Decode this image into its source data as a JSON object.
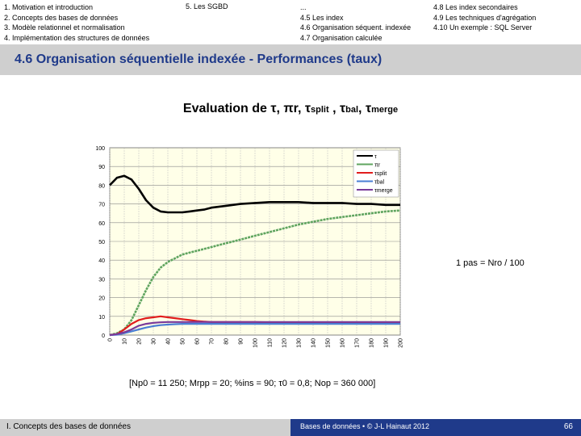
{
  "nav": {
    "left": [
      "1. Motivation et introduction",
      "2. Concepts des bases de données",
      "3. Modèle relationnel et normalisation",
      "4. Implémentation des structures de données"
    ],
    "middle": "5. Les SGBD",
    "center": [
      "...",
      "4.5 Les index",
      "4.6 Organisation séquent. indexée",
      "4.7 Organisation calculée"
    ],
    "right": [
      "4.8 Les index secondaires",
      "4.9 Les techniques d'agrégation",
      "4.10 Un exemple : SQL Server"
    ]
  },
  "band_title": "4.6 Organisation séquentielle indexée - Performances (taux)",
  "title": {
    "prefix": "Evaluation de",
    "s1": "τ",
    "sep1": ", ",
    "s2": "πr",
    "sep2": ", ",
    "s3": "τ",
    "s3sub": "split",
    "sep3": " , ",
    "s4": "τ",
    "s4sub": "bal",
    "sep4": ", ",
    "s5": "τ",
    "s5sub": "merge"
  },
  "annotation": "1 pas = Nro / 100",
  "params": "[Np0 = 11 250; Mrpp = 20; %ins = 90; τ0 = 0,8; Nop = 360 000]",
  "footer": {
    "left": "I. Concepts des bases de données",
    "source": "Bases de données • © J-L Hainaut 2012",
    "page": "66"
  },
  "colors": {
    "band": "#cfcfcf",
    "title_blue": "#1f3a8a",
    "tau": "#000000",
    "pi_r": "#5fa45f",
    "split": "#e11d1d",
    "bal": "#4a7fd4",
    "merge": "#7a3a9a",
    "plot_bg": "#ffffe8"
  },
  "chart_data": {
    "type": "line",
    "x": [
      0,
      5,
      10,
      15,
      20,
      25,
      30,
      35,
      40,
      45,
      50,
      55,
      60,
      65,
      70,
      75,
      80,
      90,
      100,
      110,
      120,
      130,
      140,
      150,
      160,
      170,
      180,
      190,
      200
    ],
    "ylim": [
      0,
      100
    ],
    "xlim": [
      0,
      200
    ],
    "y_ticks": [
      0,
      10,
      20,
      30,
      40,
      50,
      60,
      70,
      80,
      90,
      100
    ],
    "x_ticks": [
      0,
      10,
      20,
      30,
      40,
      50,
      60,
      70,
      80,
      90,
      100,
      110,
      120,
      130,
      140,
      150,
      160,
      170,
      180,
      190,
      200
    ],
    "grid": true,
    "legend_position": "top-right",
    "series": [
      {
        "name": "τ",
        "color": "#000000",
        "values": [
          80,
          84,
          85,
          83,
          78,
          72,
          68,
          66,
          65.5,
          65.5,
          65.5,
          66,
          66.5,
          67,
          68,
          68.5,
          69,
          70,
          70.5,
          71,
          71,
          71,
          70.5,
          70.5,
          70.5,
          70,
          70,
          69.5,
          69.5
        ]
      },
      {
        "name": "πr",
        "color": "#5fa45f",
        "values": [
          0,
          1,
          3,
          8,
          16,
          24,
          31,
          36,
          39,
          41,
          43,
          44,
          45,
          46,
          47,
          48,
          49,
          51,
          53,
          55,
          57,
          59,
          60.5,
          62,
          63,
          64,
          65,
          66,
          66.5
        ]
      },
      {
        "name": "τsplit",
        "color": "#e11d1d",
        "values": [
          0,
          0.5,
          3,
          6,
          8,
          9,
          9.5,
          10,
          9.5,
          9,
          8.5,
          8,
          7.5,
          7.2,
          7,
          7,
          7,
          7,
          7,
          6.8,
          6.8,
          6.7,
          6.7,
          6.6,
          6.6,
          6.6,
          6.5,
          6.5,
          6.5
        ]
      },
      {
        "name": "τbal",
        "color": "#4a7fd4",
        "values": [
          0,
          0.2,
          1,
          2,
          3,
          4,
          4.8,
          5.3,
          5.6,
          5.8,
          6,
          6,
          6,
          6,
          6,
          6,
          6,
          6,
          6,
          6,
          6,
          6,
          6,
          6,
          6,
          6,
          6,
          6,
          6
        ]
      },
      {
        "name": "τmerge",
        "color": "#7a3a9a",
        "values": [
          0,
          0.5,
          1.5,
          3,
          5,
          6,
          6.5,
          6.8,
          7,
          7,
          7,
          7,
          7,
          7,
          7,
          7,
          7,
          7,
          7,
          7,
          7,
          7,
          7,
          7,
          7,
          7,
          7,
          7,
          7
        ]
      }
    ]
  }
}
